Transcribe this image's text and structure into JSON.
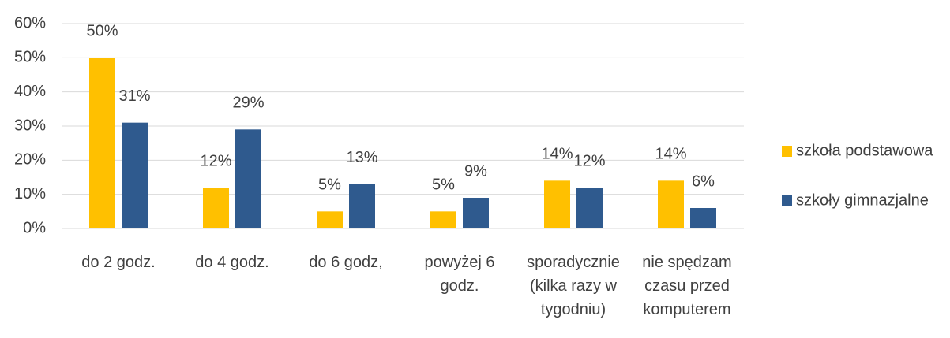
{
  "chart_data": {
    "type": "bar",
    "categories": [
      "do 2 godz.",
      "do 4 godz.",
      "do 6 godz,",
      "powyżej 6 godz.",
      "sporadycznie (kilka razy w tygodniu)",
      "nie spędzam czasu przed komputerem"
    ],
    "series": [
      {
        "name": "szkoła podstawowa",
        "color": "#FFC000",
        "values": [
          50,
          12,
          5,
          5,
          14,
          14
        ],
        "value_labels": [
          "50%",
          "12%",
          "5%",
          "5%",
          "14%",
          "14%"
        ]
      },
      {
        "name": "szkoły gimnazjalne",
        "color": "#2F5A8E",
        "values": [
          31,
          29,
          13,
          9,
          12,
          6
        ],
        "value_labels": [
          "31%",
          "29%",
          "13%",
          "9%",
          "12%",
          "6%"
        ]
      }
    ],
    "ylim": [
      0,
      60
    ],
    "yticks": [
      {
        "value": 0,
        "label": "0%"
      },
      {
        "value": 10,
        "label": "10%"
      },
      {
        "value": 20,
        "label": "20%"
      },
      {
        "value": 30,
        "label": "30%"
      },
      {
        "value": 40,
        "label": "40%"
      },
      {
        "value": 50,
        "label": "50%"
      },
      {
        "value": 60,
        "label": "60%"
      }
    ],
    "grid": true,
    "legend": "right"
  }
}
